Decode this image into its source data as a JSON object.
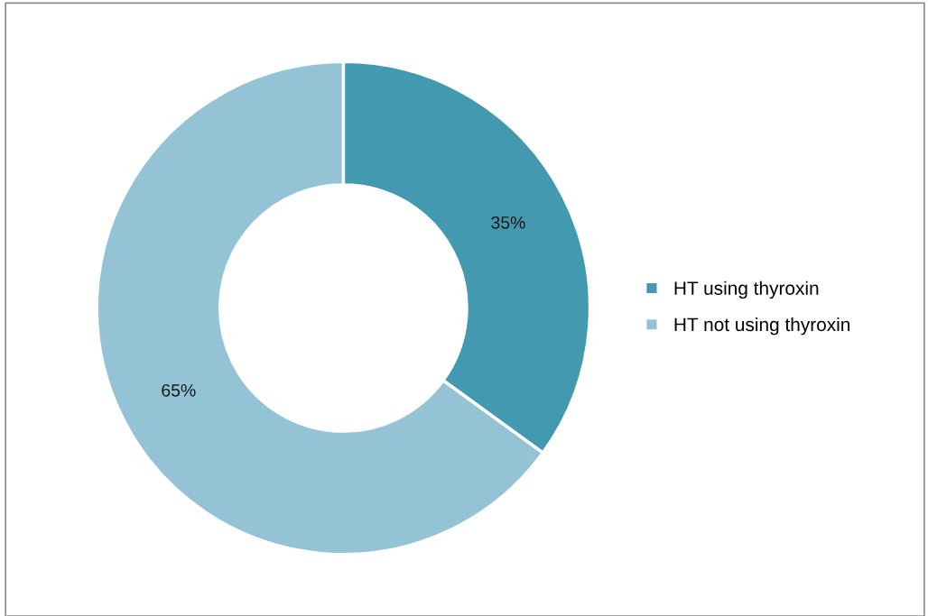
{
  "chart_data": {
    "type": "donut",
    "categories": [
      "HT using thyroxin",
      "HT not using thyroxin"
    ],
    "values": [
      35,
      65
    ],
    "colors": [
      "#4299b0",
      "#93c3d4"
    ],
    "value_labels": [
      "35%",
      "65%"
    ],
    "legend": "right"
  }
}
